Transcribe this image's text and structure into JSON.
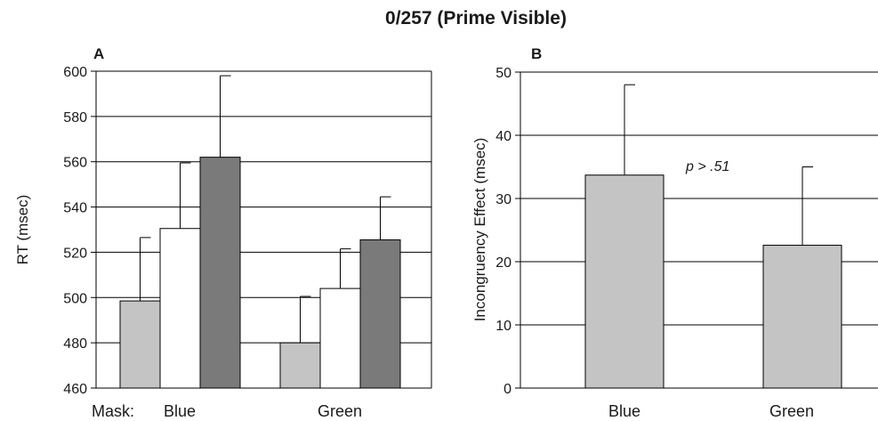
{
  "title": "0/257 (Prime Visible)",
  "chart_data": [
    {
      "panel": "A",
      "type": "bar",
      "ylabel": "RT (msec)",
      "ylim": [
        460,
        600
      ],
      "yticks": [
        460,
        480,
        500,
        520,
        540,
        560,
        580,
        600
      ],
      "x_prefix_label": "Mask:",
      "categories": [
        "Blue",
        "Green"
      ],
      "grid": true,
      "series": [
        {
          "color": "#c4c4c4",
          "values": [
            498.5,
            480.0
          ],
          "error_upper": [
            526.5,
            500.5
          ]
        },
        {
          "color": "#ffffff",
          "values": [
            530.5,
            504.0
          ],
          "error_upper": [
            559.5,
            521.5
          ]
        },
        {
          "color": "#7a7a7a",
          "values": [
            562.0,
            525.5
          ],
          "error_upper": [
            598.0,
            544.5
          ]
        }
      ]
    },
    {
      "panel": "B",
      "type": "bar",
      "ylabel": "Incongruency Effect (msec)",
      "ylim": [
        0,
        50
      ],
      "yticks": [
        0,
        10,
        20,
        30,
        40,
        50
      ],
      "categories": [
        "Blue",
        "Green"
      ],
      "grid": true,
      "annotation": "p > .51",
      "series": [
        {
          "color": "#c4c4c4",
          "values": [
            33.7,
            22.6
          ],
          "error_upper": [
            48.0,
            35.0
          ]
        }
      ]
    }
  ]
}
